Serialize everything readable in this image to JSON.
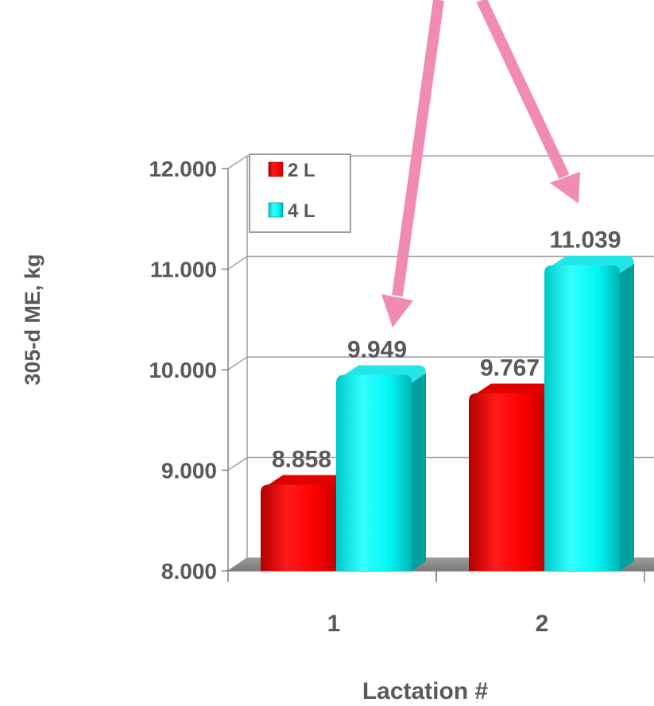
{
  "chart_data": {
    "type": "bar",
    "title": "",
    "xlabel": "Lactation #",
    "ylabel": "305-d ME, kg",
    "categories": [
      "1",
      "2"
    ],
    "series": [
      {
        "name": "2 L",
        "values": [
          8858,
          9767
        ],
        "labels": [
          "8.858",
          "9.767"
        ],
        "color": "#ff0000"
      },
      {
        "name": "4 L",
        "values": [
          9949,
          11039
        ],
        "labels": [
          "9.949",
          "11.039"
        ],
        "color": "#00ffff"
      }
    ],
    "ylim": [
      8000,
      12000
    ],
    "yticks": [
      8000,
      9000,
      10000,
      11000,
      12000
    ],
    "ytick_labels": [
      "8.000",
      "9.000",
      "10.000",
      "11.000",
      "12.000"
    ],
    "grid": true,
    "legend_position": "top-left",
    "annotation_arrow_color": "#f08cb4"
  }
}
